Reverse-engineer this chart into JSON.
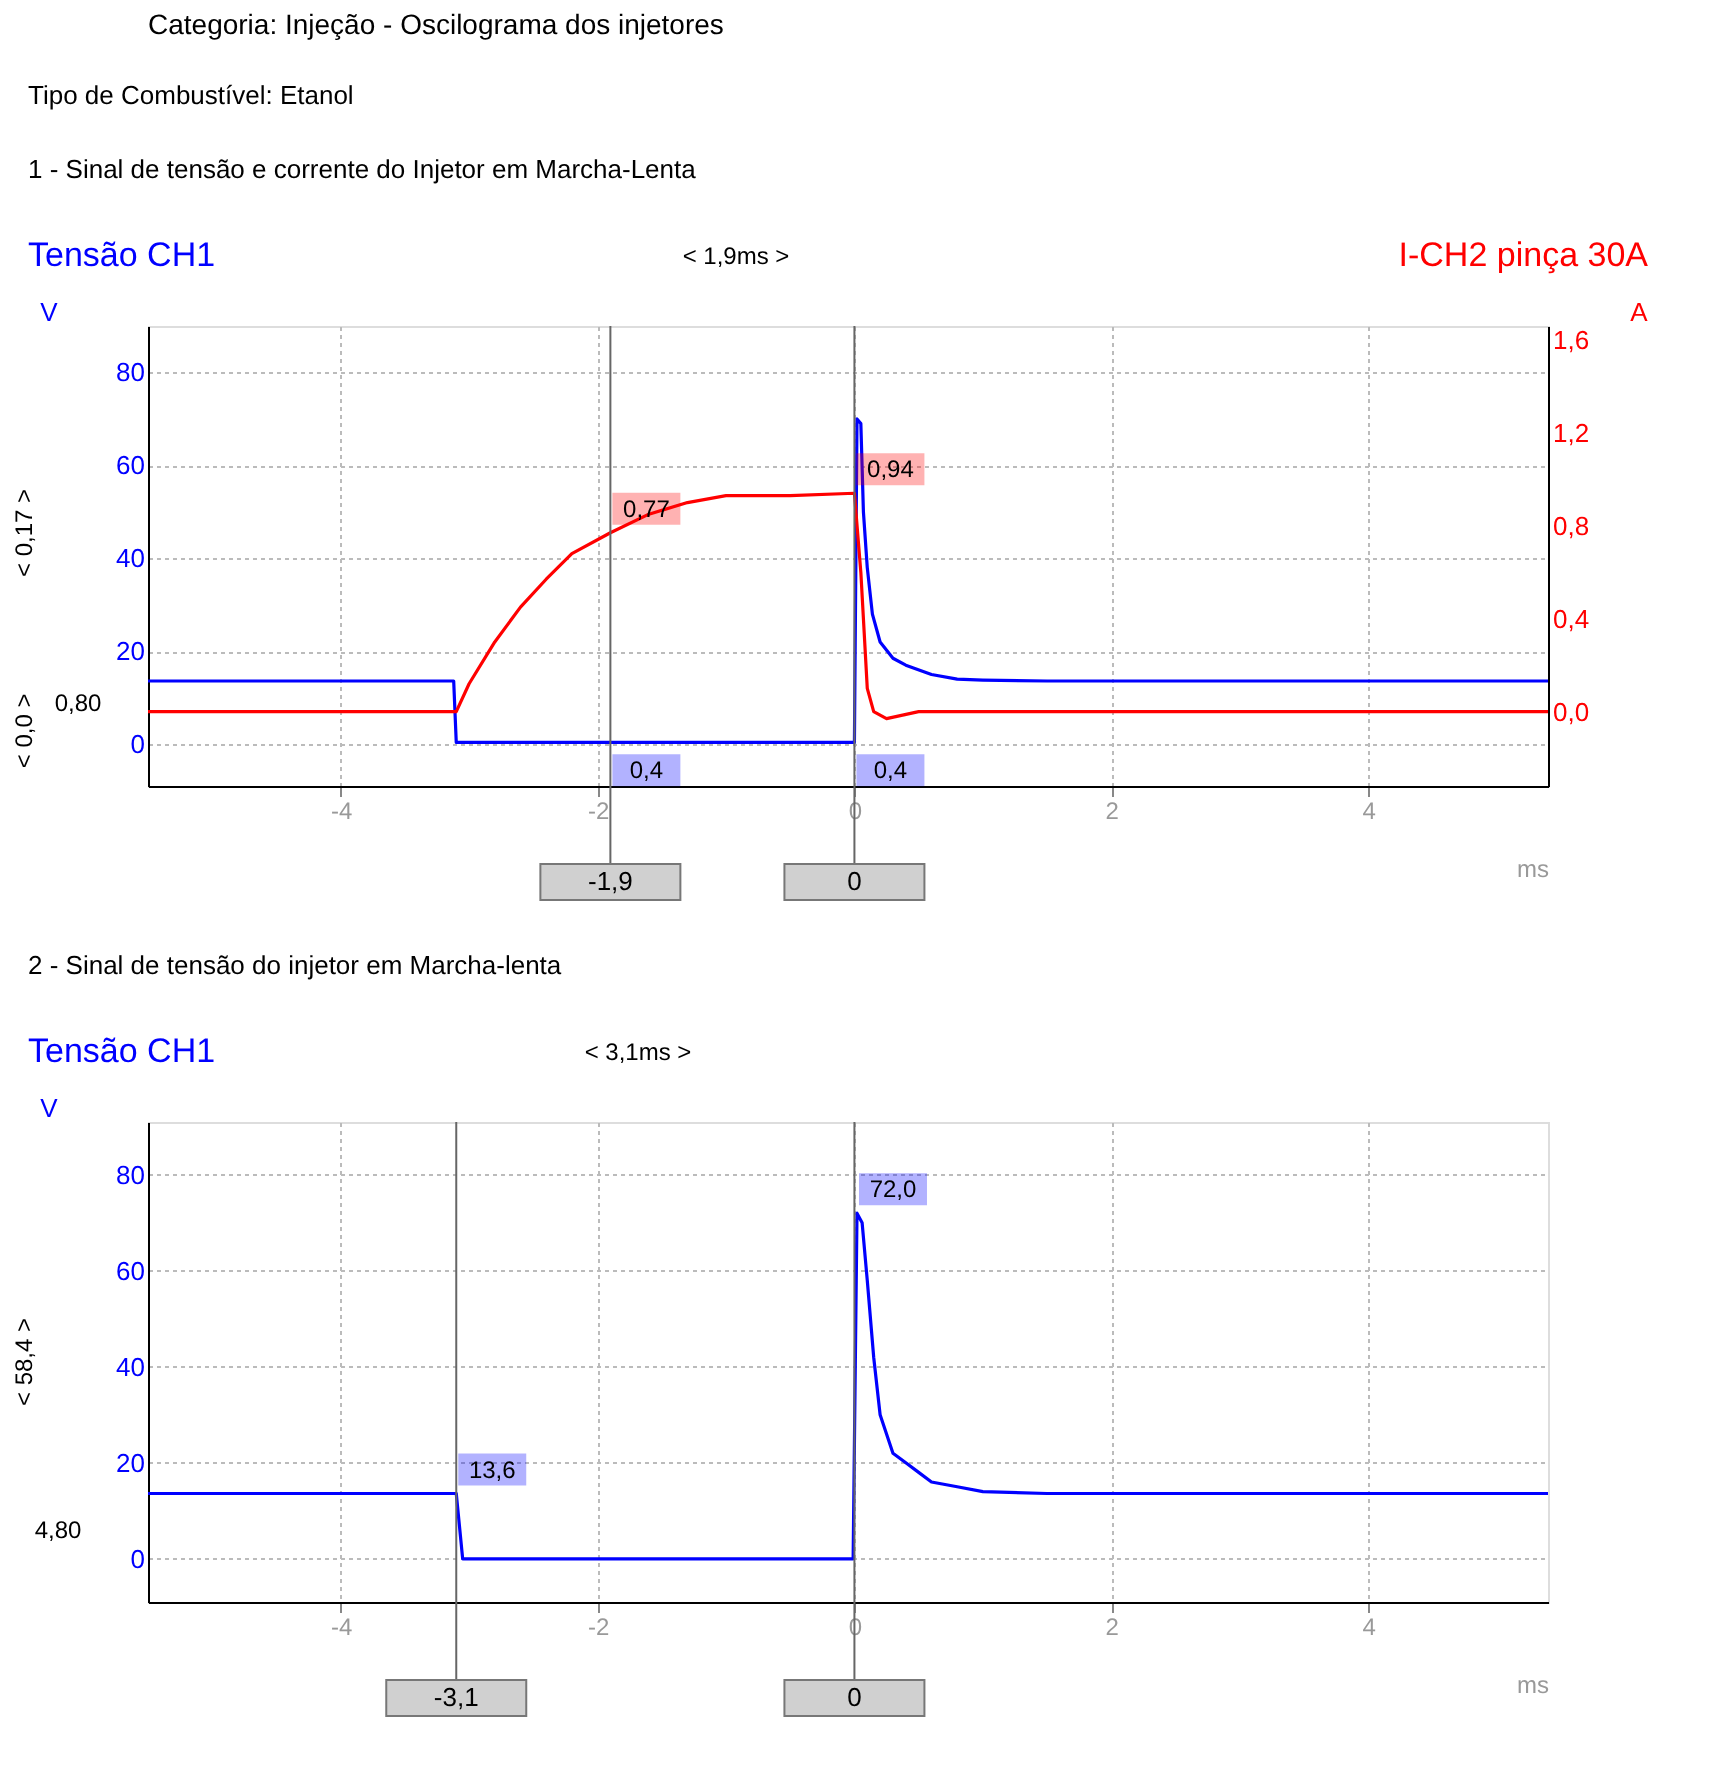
{
  "chart_data": [
    {
      "type": "line",
      "title": "1 - Sinal de tensão e corrente do Injetor em Marcha-Lenta",
      "xlabel": "ms",
      "ylabel": "V",
      "y2label": "A",
      "annotations": [
        "Categoria: Injeção - Oscilograma dos injetores",
        "Tipo de Combustível:  Etanol",
        "< 1,9ms >",
        "< 0,17 >",
        "< 0,0 >",
        "0,80"
      ],
      "xlim": [
        -5.5,
        5.4
      ],
      "xticks": [
        -4,
        -2,
        0,
        2,
        4
      ],
      "ylim": [
        -9,
        90
      ],
      "yticks": [
        0,
        20,
        40,
        60,
        80
      ],
      "y2lim": [
        -0.32,
        1.66
      ],
      "y2ticks": [
        {
          "value": 0,
          "label": "0,0"
        },
        {
          "value": 0.4,
          "label": "0,4"
        },
        {
          "value": 0.8,
          "label": "0,8"
        },
        {
          "value": 1.2,
          "label": "1,2"
        },
        {
          "value": 1.6,
          "label": "1,6"
        }
      ],
      "grid": true,
      "ref_lines": [
        {
          "axis": "x",
          "value": -1.9,
          "label": "-1,9",
          "color": "#666666"
        },
        {
          "axis": "x",
          "value": 0,
          "label": "0",
          "color": "#666666"
        }
      ],
      "series": [
        {
          "name": "Tensão CH1",
          "color": "#0000ff",
          "x": [
            -5.5,
            -3.12,
            -3.1,
            -1.9,
            0,
            0.02,
            0.05,
            0.07,
            0.1,
            0.14,
            0.2,
            0.3,
            0.4,
            0.6,
            0.8,
            1.0,
            1.5,
            5.4
          ],
          "values": [
            13.6,
            13.6,
            0.4,
            0.4,
            0.4,
            70,
            69,
            50,
            38,
            28,
            22,
            18.5,
            17,
            15,
            14,
            13.8,
            13.6,
            13.6
          ],
          "value_labels": [
            null,
            null,
            null,
            "0,4",
            "0,4",
            null,
            null,
            null,
            null,
            null,
            null,
            null,
            null,
            null,
            null,
            null,
            null,
            null
          ]
        },
        {
          "name": "I-CH2 pinça 30A",
          "color": "#ff0000",
          "axis": "y2",
          "x": [
            -5.5,
            -3.1,
            -3.0,
            -2.8,
            -2.6,
            -2.4,
            -2.2,
            -1.9,
            -1.6,
            -1.3,
            -1.0,
            -0.5,
            0,
            0.05,
            0.1,
            0.15,
            0.25,
            0.5,
            5.4
          ],
          "values": [
            0.0,
            0.0,
            0.12,
            0.3,
            0.45,
            0.57,
            0.68,
            0.77,
            0.85,
            0.9,
            0.93,
            0.93,
            0.94,
            0.6,
            0.1,
            0.0,
            -0.03,
            0.0,
            0.0
          ],
          "value_labels": [
            null,
            null,
            null,
            null,
            null,
            null,
            null,
            "0,77",
            null,
            null,
            null,
            null,
            "0,94",
            null,
            null,
            null,
            null,
            null,
            null
          ]
        }
      ]
    },
    {
      "type": "line",
      "title": "2 - Sinal de tensão do injetor em Marcha-lenta",
      "xlabel": "ms",
      "ylabel": "V",
      "annotations": [
        "< 3,1ms >",
        "< 58,4 >",
        "4,80"
      ],
      "xlim": [
        -5.5,
        5.4
      ],
      "xticks": [
        -4,
        -2,
        0,
        2,
        4
      ],
      "ylim": [
        -9,
        91
      ],
      "yticks": [
        0,
        20,
        40,
        60,
        80
      ],
      "grid": true,
      "ref_lines": [
        {
          "axis": "x",
          "value": -3.1,
          "label": "-3,1",
          "color": "#666666"
        },
        {
          "axis": "x",
          "value": 0,
          "label": "0",
          "color": "#666666"
        }
      ],
      "series": [
        {
          "name": "Tensão CH1",
          "color": "#0000ff",
          "x": [
            -5.5,
            -3.1,
            -3.05,
            -0.01,
            0.02,
            0.06,
            0.1,
            0.15,
            0.2,
            0.3,
            0.4,
            0.5,
            0.6,
            0.8,
            1.0,
            1.5,
            5.4
          ],
          "values": [
            13.6,
            13.6,
            0,
            0,
            72.0,
            70,
            58,
            42,
            30,
            22,
            20,
            18,
            16,
            15,
            14,
            13.6,
            13.6
          ],
          "value_labels": [
            null,
            "13,6",
            null,
            null,
            "72,0",
            null,
            null,
            null,
            null,
            null,
            null,
            null,
            null,
            null,
            null,
            null,
            null
          ]
        }
      ]
    }
  ]
}
